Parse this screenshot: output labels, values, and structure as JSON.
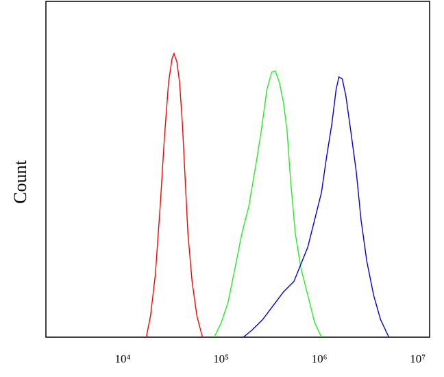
{
  "chart_data": {
    "type": "line",
    "ylabel": "Count",
    "xscale": "log",
    "xlim": [
      1660,
      13200000
    ],
    "ylim": [
      0,
      100
    ],
    "xticks": [
      {
        "value": 10000,
        "label": "10⁴"
      },
      {
        "value": 100000,
        "label": "10⁵"
      },
      {
        "value": 1000000,
        "label": "10⁶"
      },
      {
        "value": 10000000,
        "label": "10⁷"
      }
    ],
    "series": [
      {
        "color": "#ff0000",
        "x": [
          17400,
          19200,
          21500,
          24100,
          26600,
          29300,
          31800,
          33300,
          35600,
          37900,
          40500,
          43200,
          46100,
          50800,
          56900,
          64800
        ],
        "values": [
          0,
          6.3,
          18.6,
          39.1,
          59.5,
          75.9,
          83.0,
          84.5,
          82.0,
          75.9,
          63.6,
          47.2,
          30.9,
          16.6,
          6.3,
          0
        ]
      },
      {
        "color": "#22ee22",
        "x": [
          85300,
          100500,
          118000,
          139000,
          163000,
          192000,
          226000,
          257000,
          293000,
          328000,
          356000,
          392000,
          432000,
          469000,
          508000,
          569000,
          648000,
          762000,
          896000,
          1050000
        ],
        "values": [
          0,
          4.3,
          10.4,
          20.7,
          30.9,
          39.1,
          51.3,
          61.6,
          73.8,
          78.9,
          79.3,
          75.9,
          69.7,
          61.6,
          47.2,
          30.9,
          20.7,
          12.5,
          4.3,
          0
        ]
      },
      {
        "color": "#0000dd",
        "x": [
          169000,
          208000,
          266000,
          339000,
          432000,
          551000,
          648000,
          762000,
          896000,
          1050000,
          1180000,
          1340000,
          1480000,
          1580000,
          1710000,
          1860000,
          2080000,
          2370000,
          2650000,
          3030000,
          3560000,
          4180000,
          5080000
        ],
        "values": [
          0,
          2.2,
          5.3,
          9.4,
          13.5,
          16.6,
          21.7,
          26.8,
          35.0,
          43.1,
          53.4,
          63.6,
          73.8,
          77.5,
          76.9,
          71.8,
          61.6,
          49.3,
          35.0,
          22.7,
          12.5,
          5.3,
          0
        ]
      }
    ]
  }
}
